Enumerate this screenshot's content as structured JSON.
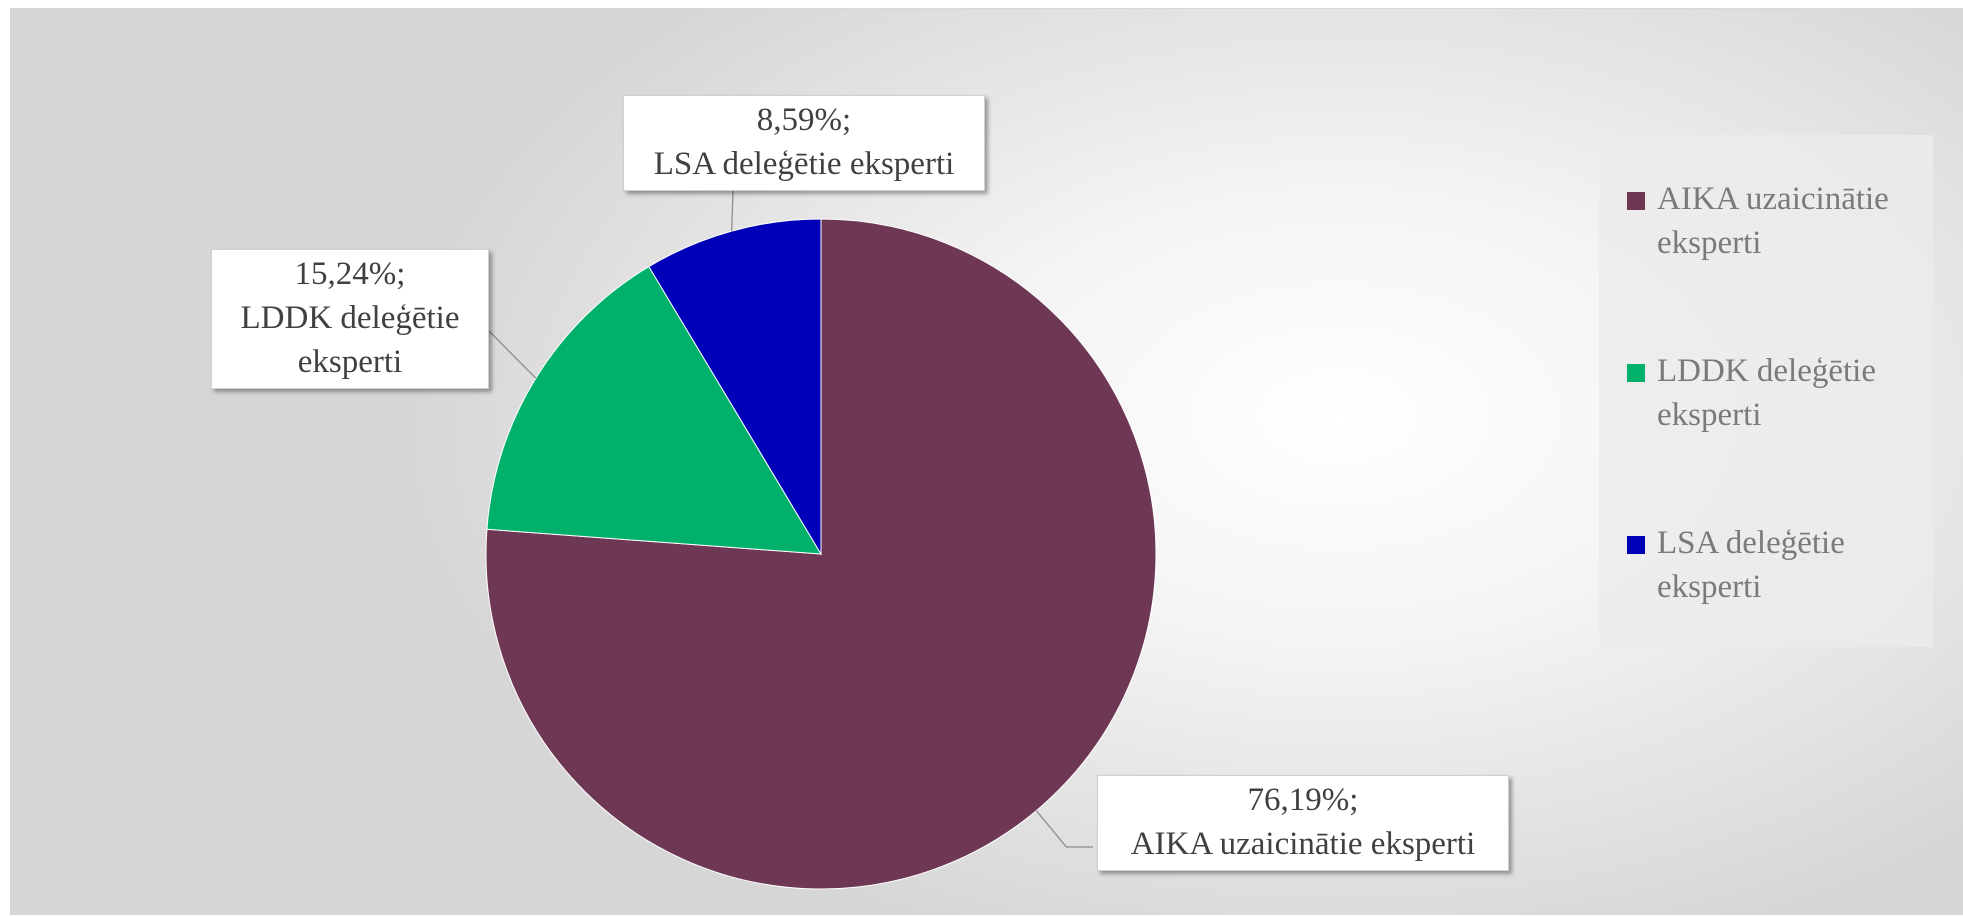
{
  "chart_data": {
    "type": "pie",
    "title": "",
    "slices": [
      {
        "name": "AIKA uzaicinātie eksperti",
        "value": 76.19,
        "value_label": "76,19%;",
        "label_lines": [
          "76,19%;",
          "AIKA uzaicinātie eksperti"
        ],
        "legend_lines": [
          "AIKA uzaicinātie",
          "eksperti"
        ],
        "color": "#6e3855"
      },
      {
        "name": "LDDK deleģētie eksperti",
        "value": 15.24,
        "value_label": "15,24%;",
        "label_lines": [
          "15,24%;",
          "LDDK deleģētie",
          "eksperti"
        ],
        "legend_lines": [
          "LDDK deleģētie",
          "eksperti"
        ],
        "color": "#00b06b"
      },
      {
        "name": "LSA deleģētie eksperti",
        "value": 8.59,
        "value_label": "8,59%;",
        "label_lines": [
          "8,59%;",
          "LSA deleģētie eksperti"
        ],
        "legend_lines": [
          "LSA deleģētie",
          "eksperti"
        ],
        "color": "#0000b8"
      }
    ],
    "legend_position": "right",
    "start_angle_deg": 0,
    "direction": "clockwise"
  }
}
